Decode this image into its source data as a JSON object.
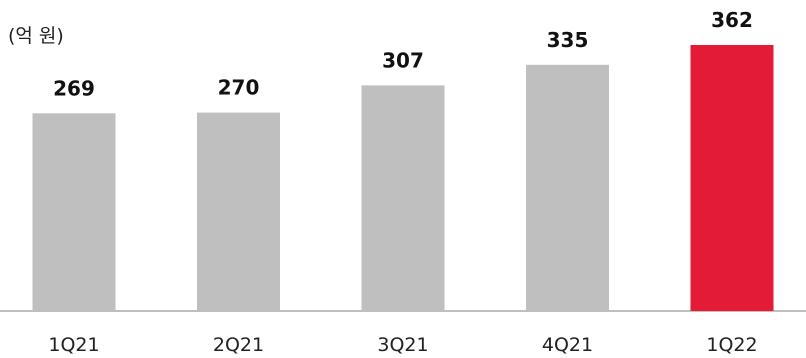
{
  "chart_data": {
    "type": "bar",
    "unit_label": "(억 원)",
    "categories": [
      "1Q21",
      "2Q21",
      "3Q21",
      "4Q21",
      "1Q22"
    ],
    "values": [
      269,
      270,
      307,
      335,
      362
    ],
    "value_labels": [
      "269",
      "270",
      "307",
      "335",
      "362"
    ],
    "ylim": [
      0,
      362
    ],
    "grid": false,
    "legend": "none"
  },
  "colors": {
    "bar_default": "#bfbfbf",
    "bar_highlight": "#e31b37",
    "baseline": "#bfbfbf"
  },
  "highlight_index": 4
}
